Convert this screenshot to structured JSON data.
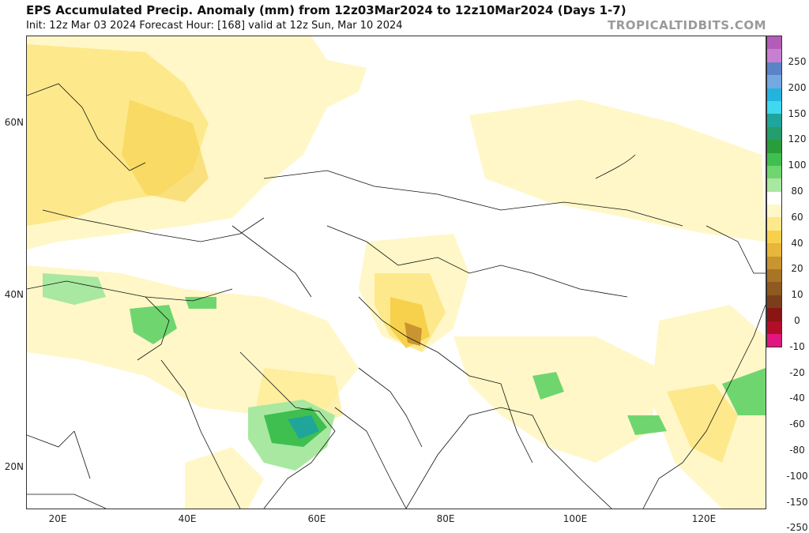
{
  "header": {
    "title": "EPS Accumulated Precip. Anomaly (mm) from 12z03Mar2024 to 12z10Mar2024 (Days 1-7)",
    "subtitle": "Init: 12z Mar 03 2024   Forecast Hour: [168]   valid at 12z Sun, Mar 10 2024",
    "brand": "TROPICALTIDBITS.COM"
  },
  "map": {
    "lat_labels": [
      "60N",
      "40N",
      "20N"
    ],
    "lon_labels": [
      "20E",
      "40E",
      "60E",
      "80E",
      "100E",
      "120E"
    ]
  },
  "colorbar": {
    "labels": [
      "250",
      "200",
      "150",
      "120",
      "100",
      "80",
      "60",
      "40",
      "20",
      "10",
      "0",
      "-10",
      "-20",
      "-40",
      "-60",
      "-80",
      "-100",
      "-150",
      "-250"
    ],
    "colors": [
      "#b35db8",
      "#c87fd0",
      "#5b84c8",
      "#73a8e0",
      "#22b4df",
      "#3fd8f0",
      "#1fa59a",
      "#239e6e",
      "#2a9d3b",
      "#3fbf4f",
      "#6fd66f",
      "#a8e8a0",
      "#ffffff",
      "#fff7c7",
      "#fde98c",
      "#f7d14b",
      "#e8b63a",
      "#c99530",
      "#a87426",
      "#8e5a20",
      "#7a3e1a",
      "#8a1515",
      "#b30d2a",
      "#e0177e"
    ]
  }
}
